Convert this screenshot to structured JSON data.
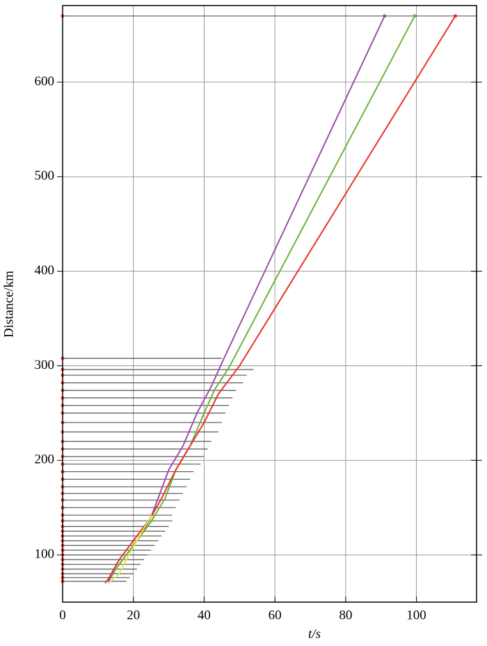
{
  "chart_data": {
    "type": "record-section",
    "xlabel": "t/s",
    "ylabel": "Distance/km",
    "xlim": [
      0,
      117
    ],
    "ylim": [
      50,
      681
    ],
    "xticks": [
      0,
      20,
      40,
      60,
      80,
      100
    ],
    "yticks": [
      100,
      200,
      300,
      400,
      500,
      600
    ],
    "grid": true,
    "traces": {
      "color": "#555555",
      "marker_color": "#e8312a",
      "distance": [
        72,
        76,
        80,
        85,
        90,
        95,
        100,
        105,
        110,
        115,
        120,
        125,
        130,
        136,
        142,
        150,
        158,
        165,
        172,
        180,
        188,
        196,
        204,
        212,
        220,
        230,
        240,
        250,
        258,
        266,
        274,
        282,
        290,
        296,
        308,
        670
      ],
      "end": [
        18,
        19,
        20,
        21,
        22,
        23,
        24,
        25,
        26,
        27,
        28,
        29,
        30,
        31,
        31,
        32,
        33,
        34,
        35,
        36,
        37,
        39,
        40,
        41,
        42,
        44,
        45,
        46,
        47,
        48,
        49,
        51,
        52,
        54,
        45,
        117
      ]
    },
    "series": [
      {
        "color": "#9b4fa8",
        "x": [
          13,
          15,
          18,
          22,
          25,
          27,
          30,
          34,
          38,
          42,
          45.5,
          91
        ],
        "y": [
          72,
          85,
          100,
          120,
          140,
          160,
          190,
          215,
          250,
          278,
          307,
          670
        ]
      },
      {
        "color": "#6cb33a",
        "x": [
          12.5,
          14,
          17,
          21,
          25,
          29,
          32,
          36,
          40,
          43,
          47,
          99.5
        ],
        "y": [
          72,
          80,
          95,
          115,
          135,
          160,
          190,
          215,
          250,
          275,
          298,
          670
        ]
      },
      {
        "color": "#e8312a",
        "x": [
          12,
          13,
          16,
          20,
          25,
          28,
          32,
          36,
          40,
          44,
          48,
          50,
          111
        ],
        "y": [
          70,
          75,
          95,
          115,
          140,
          160,
          190,
          215,
          240,
          270,
          290,
          300,
          670
        ]
      },
      {
        "color": "#e8e84a",
        "x": [
          13,
          16,
          18,
          21,
          24,
          25
        ],
        "y": [
          70,
          80,
          95,
          115,
          135,
          140
        ]
      }
    ]
  }
}
